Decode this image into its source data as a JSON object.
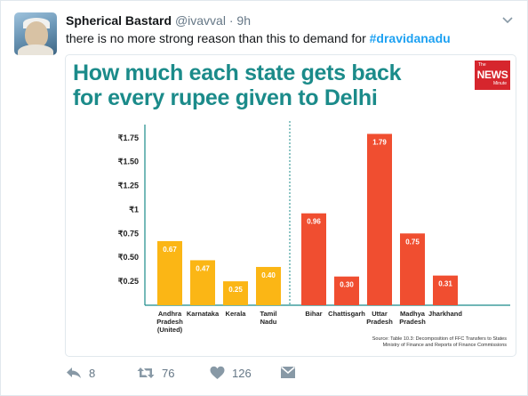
{
  "tweet": {
    "author_name": "Spherical Bastard",
    "handle": "@ivavval",
    "separator": "·",
    "time": "9h",
    "text": "there is no more strong reason than this to demand for ",
    "hashtag": "#dravidanadu"
  },
  "media": {
    "title_line1": "How much each state gets back",
    "title_line2": "for every rupee given to Delhi",
    "logo": {
      "the": "The",
      "news": "NEWS",
      "minute": "Minute"
    },
    "source_line1": "Source: Table 10.3: Decomposition of FFC Transfers to States",
    "source_line2": "Ministry of Finance and Reports of Finance Commissions"
  },
  "chart_data": {
    "type": "bar",
    "title": "How much each state gets back for every rupee given to Delhi",
    "xlabel": "",
    "ylabel": "",
    "ylim": [
      0,
      1.85
    ],
    "yticks": [
      {
        "value": 0.25,
        "label": "₹0.25"
      },
      {
        "value": 0.5,
        "label": "₹0.50"
      },
      {
        "value": 0.75,
        "label": "₹0.75"
      },
      {
        "value": 1,
        "label": "₹1"
      },
      {
        "value": 1.25,
        "label": "₹1.25"
      },
      {
        "value": 1.5,
        "label": "₹1.50"
      },
      {
        "value": 1.75,
        "label": "₹1.75"
      }
    ],
    "grid": false,
    "groups": [
      {
        "color": "#fbb615",
        "bars": [
          {
            "category": [
              "Andhra",
              "Pradesh",
              "(United)"
            ],
            "value": 0.67,
            "label": "0.67"
          },
          {
            "category": [
              "Karnataka"
            ],
            "value": 0.47,
            "label": "0.47"
          },
          {
            "category": [
              "Kerala"
            ],
            "value": 0.25,
            "label": "0.25"
          },
          {
            "category": [
              "Tamil",
              "Nadu"
            ],
            "value": 0.4,
            "label": "0.40"
          }
        ]
      },
      {
        "color": "#f04e30",
        "bars": [
          {
            "category": [
              "Bihar"
            ],
            "value": 0.96,
            "label": "0.96"
          },
          {
            "category": [
              "Chattisgarh"
            ],
            "value": 0.3,
            "label": "0.30"
          },
          {
            "category": [
              "Uttar",
              "Pradesh"
            ],
            "value": 1.79,
            "label": "1.79"
          },
          {
            "category": [
              "Madhya",
              "Pradesh"
            ],
            "value": 0.75,
            "label": "0.75"
          },
          {
            "category": [
              "Jharkhand"
            ],
            "value": 0.31,
            "label": "0.31"
          }
        ]
      }
    ]
  },
  "actions": {
    "reply_count": "8",
    "retweet_count": "76",
    "like_count": "126"
  },
  "colors": {
    "title": "#1b8b8a",
    "hashtag": "#1da1f2",
    "south_bars": "#fbb615",
    "north_bars": "#f04e30",
    "logo": "#d6262d"
  }
}
